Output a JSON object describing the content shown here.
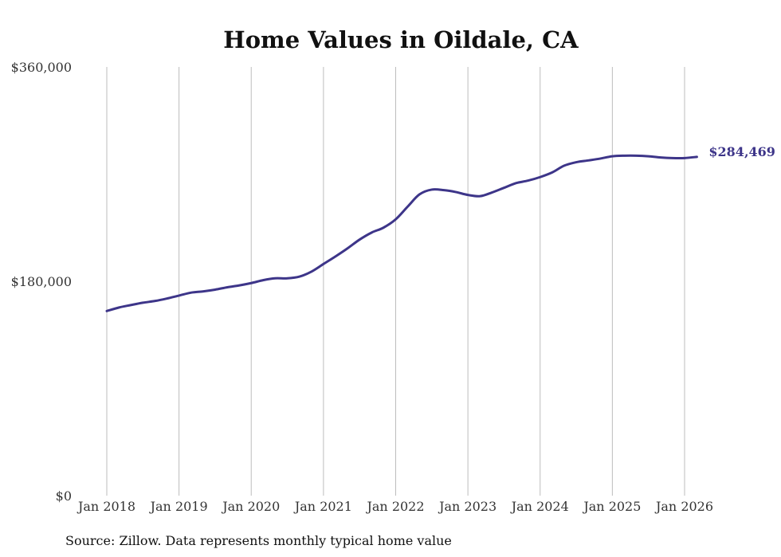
{
  "chart_data": {
    "type": "line",
    "title": "Home Values in Oildale, CA",
    "xlabel": "",
    "ylabel": "",
    "ylim": [
      0,
      360000
    ],
    "xlim": [
      2018.0,
      2026.2
    ],
    "y_ticks": [
      {
        "value": 0,
        "label": "$0"
      },
      {
        "value": 180000,
        "label": "$180,000"
      },
      {
        "value": 360000,
        "label": "$360,000"
      }
    ],
    "x_ticks": [
      {
        "value": 2018,
        "label": "Jan 2018"
      },
      {
        "value": 2019,
        "label": "Jan 2019"
      },
      {
        "value": 2020,
        "label": "Jan 2020"
      },
      {
        "value": 2021,
        "label": "Jan 2021"
      },
      {
        "value": 2022,
        "label": "Jan 2022"
      },
      {
        "value": 2023,
        "label": "Jan 2023"
      },
      {
        "value": 2024,
        "label": "Jan 2024"
      },
      {
        "value": 2025,
        "label": "Jan 2025"
      },
      {
        "value": 2026,
        "label": "Jan 2026"
      }
    ],
    "grid": "vertical",
    "series": [
      {
        "name": "Typical home value",
        "color": "#3d3589",
        "end_label": "$284,469",
        "points": [
          [
            2018.0,
            155000
          ],
          [
            2018.17,
            158000
          ],
          [
            2018.33,
            160000
          ],
          [
            2018.5,
            162000
          ],
          [
            2018.67,
            163500
          ],
          [
            2018.83,
            165500
          ],
          [
            2019.0,
            168000
          ],
          [
            2019.17,
            170500
          ],
          [
            2019.33,
            171500
          ],
          [
            2019.5,
            173000
          ],
          [
            2019.67,
            175000
          ],
          [
            2019.83,
            176500
          ],
          [
            2020.0,
            178500
          ],
          [
            2020.17,
            181000
          ],
          [
            2020.33,
            182500
          ],
          [
            2020.5,
            182500
          ],
          [
            2020.67,
            184000
          ],
          [
            2020.83,
            188000
          ],
          [
            2021.0,
            194500
          ],
          [
            2021.17,
            201000
          ],
          [
            2021.33,
            207500
          ],
          [
            2021.5,
            215000
          ],
          [
            2021.67,
            221000
          ],
          [
            2021.83,
            225000
          ],
          [
            2022.0,
            232000
          ],
          [
            2022.17,
            243000
          ],
          [
            2022.33,
            253000
          ],
          [
            2022.5,
            257000
          ],
          [
            2022.67,
            256500
          ],
          [
            2022.83,
            255000
          ],
          [
            2023.0,
            252500
          ],
          [
            2023.17,
            251500
          ],
          [
            2023.33,
            254500
          ],
          [
            2023.5,
            258500
          ],
          [
            2023.67,
            262500
          ],
          [
            2023.83,
            264500
          ],
          [
            2024.0,
            267500
          ],
          [
            2024.17,
            271500
          ],
          [
            2024.33,
            277000
          ],
          [
            2024.5,
            280000
          ],
          [
            2024.67,
            281500
          ],
          [
            2024.83,
            283000
          ],
          [
            2025.0,
            285000
          ],
          [
            2025.17,
            285500
          ],
          [
            2025.33,
            285500
          ],
          [
            2025.5,
            285000
          ],
          [
            2025.67,
            284000
          ],
          [
            2025.83,
            283500
          ],
          [
            2026.0,
            283500
          ],
          [
            2026.17,
            284469
          ]
        ]
      }
    ]
  },
  "footer": {
    "source": "Source: Zillow. Data represents monthly typical home value"
  }
}
